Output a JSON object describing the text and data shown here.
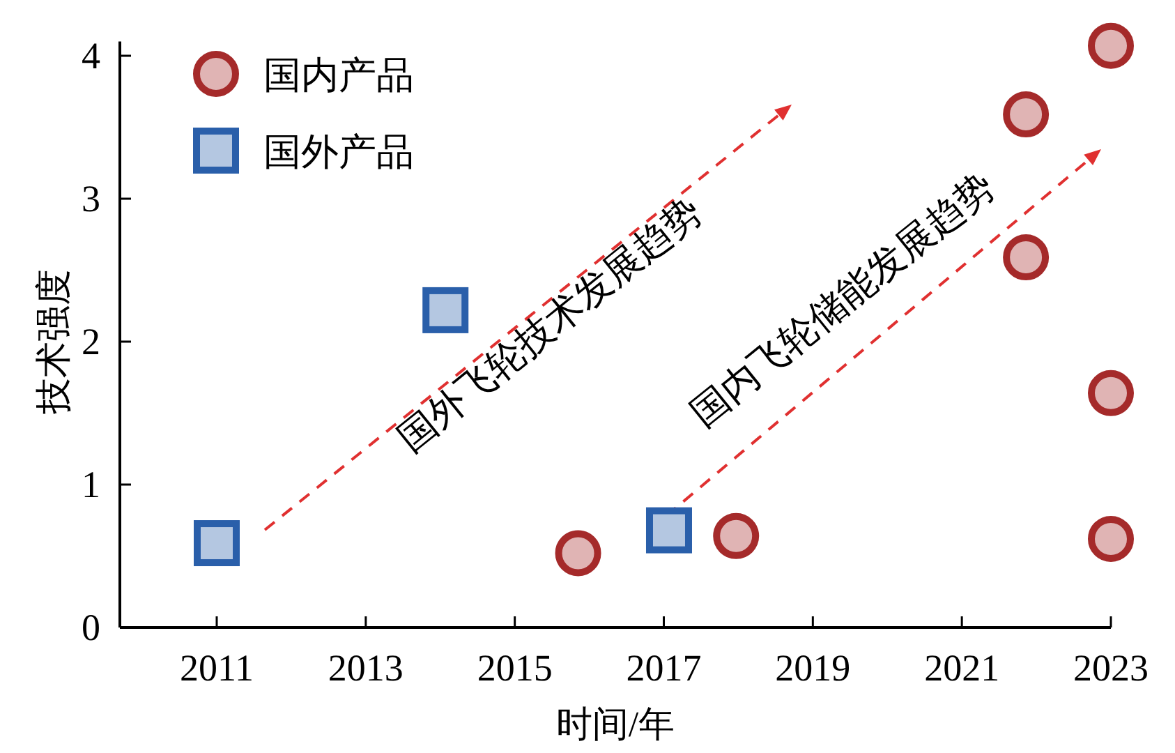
{
  "chart_data": {
    "type": "scatter",
    "xlabel": "时间/年",
    "ylabel": "技术强度",
    "xlim": [
      2009.7,
      2023
    ],
    "ylim": [
      0,
      4.1
    ],
    "xticks": [
      2011,
      2013,
      2015,
      2017,
      2019,
      2021,
      2023
    ],
    "yticks": [
      0,
      1,
      2,
      3,
      4
    ],
    "grid": false,
    "legend": "top left",
    "series": [
      {
        "name": "国内产品",
        "color": "#a52a2a",
        "marker": "circle",
        "x": [
          2015.85,
          2017.97,
          2021.86,
          2021.86,
          2023,
          2023,
          2023
        ],
        "values": [
          0.52,
          0.64,
          3.59,
          2.59,
          4.07,
          1.64,
          0.62
        ]
      },
      {
        "name": "国外产品",
        "color": "#2a5faa",
        "marker": "square",
        "x": [
          2011,
          2014.07,
          2017.07
        ],
        "values": [
          0.59,
          2.22,
          0.68
        ]
      }
    ],
    "annotations": [
      "国外飞轮技术发展趋势",
      "国内飞轮储能发展趋势"
    ]
  }
}
